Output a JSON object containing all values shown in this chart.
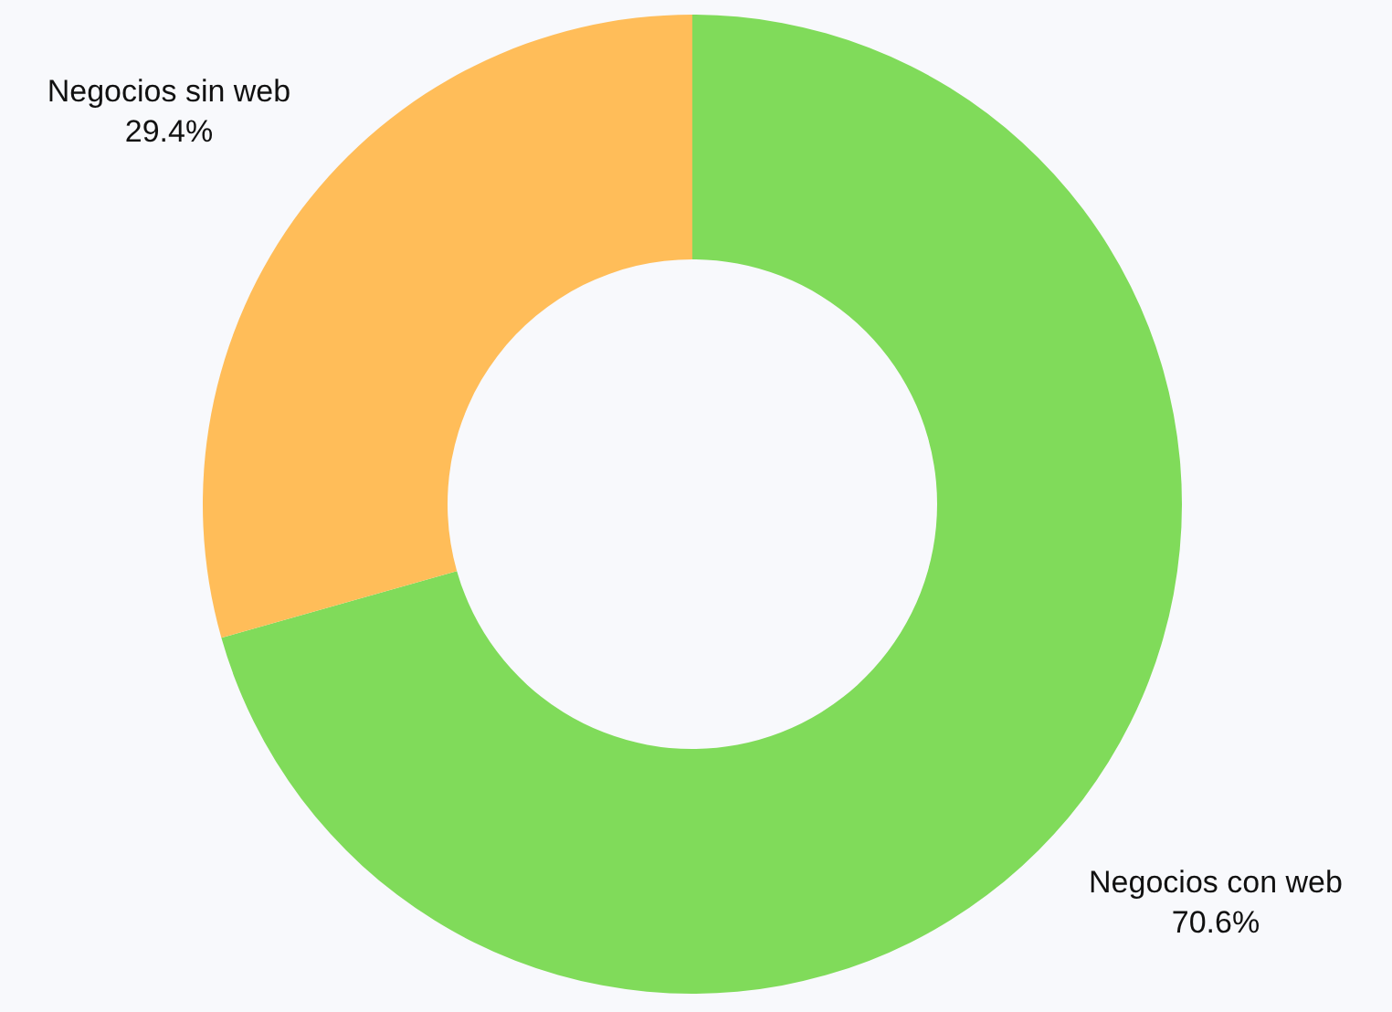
{
  "chart_data": {
    "type": "donut",
    "categories": [
      "Negocios con web",
      "Negocios sin web"
    ],
    "values": [
      70.6,
      29.4
    ],
    "colors": [
      "#80db5a",
      "#ffbd59"
    ],
    "value_labels": [
      "70.6%",
      "29.4%"
    ]
  }
}
